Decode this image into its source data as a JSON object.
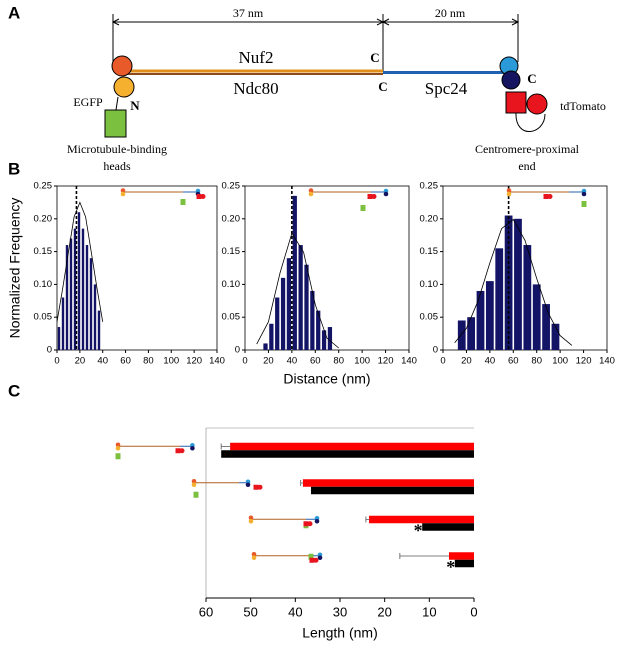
{
  "panel_labels": [
    "A",
    "B",
    "C"
  ],
  "diagram": {
    "dimensions": [
      "37 nm",
      "20 nm"
    ],
    "top_protein": "Nuf2",
    "bottom_protein": "Ndc80",
    "right_protein": "Spc24",
    "c_termini": [
      "C",
      "C",
      "C"
    ],
    "n_terminus": "N",
    "left_tag": "EGFP",
    "right_tag": "tdTomato",
    "left_caption": [
      "Microtubule-binding",
      "heads"
    ],
    "right_caption": [
      "Centromere-proximal",
      "end"
    ]
  },
  "chart_data": [
    {
      "type": "histogram",
      "ylabel": "Normalized Frequency",
      "bins": [
        0,
        3.5,
        7,
        10.5,
        14,
        17.5,
        21,
        24.5,
        28,
        31.5,
        35,
        38.5
      ],
      "values": [
        0.035,
        0.08,
        0.16,
        0.17,
        0.185,
        0.21,
        0.185,
        0.16,
        0.14,
        0.1,
        0.06
      ],
      "color": "#141466",
      "fit": {
        "x": [
          0,
          5,
          10,
          15,
          20,
          25,
          30,
          35,
          40
        ],
        "values": [
          0.043,
          0.094,
          0.149,
          0.203,
          0.225,
          0.203,
          0.149,
          0.094,
          0.043
        ]
      },
      "mean": 17,
      "xlim": [
        0,
        140
      ],
      "xticks": [
        0,
        20,
        40,
        60,
        80,
        100,
        120,
        140
      ],
      "ylim": [
        0,
        0.25
      ],
      "yticks": [
        0,
        0.05,
        {
          "value": 0.1,
          "label": "0.10"
        },
        0.15,
        {
          "value": 0.2,
          "label": "0.20"
        },
        0.25
      ]
    },
    {
      "type": "histogram",
      "xlabel": "Distance (nm)",
      "bins": [
        15,
        20,
        25,
        30,
        35,
        40,
        45,
        50,
        55,
        60,
        65,
        70,
        75
      ],
      "values": [
        0.01,
        0.04,
        0.08,
        0.11,
        0.14,
        0.235,
        0.16,
        0.13,
        0.09,
        0.06,
        0.03,
        0.035
      ],
      "color": "#141466",
      "fit": {
        "x": [
          10,
          20,
          30,
          40,
          50,
          60,
          70,
          80
        ],
        "values": [
          0.009,
          0.043,
          0.118,
          0.178,
          0.149,
          0.069,
          0.018,
          0.003
        ]
      },
      "mean": 40,
      "xlim": [
        0,
        140
      ],
      "xticks": [
        0,
        20,
        40,
        60,
        80,
        100,
        120,
        140
      ],
      "ylim": [
        0,
        0.25
      ],
      "yticks": [
        0,
        0.05,
        {
          "value": 0.1,
          "label": "0.10"
        },
        0.15,
        {
          "value": 0.2,
          "label": "0.20"
        },
        0.25
      ]
    },
    {
      "type": "histogram",
      "bins": [
        12,
        20,
        28,
        36,
        44,
        52,
        60,
        68,
        76,
        84,
        92,
        100
      ],
      "values": [
        0.045,
        0.05,
        0.09,
        0.105,
        0.155,
        0.205,
        0.2,
        0.16,
        0.1,
        0.07,
        0.04
      ],
      "color": "#141466",
      "fit": {
        "x": [
          10,
          20,
          30,
          40,
          50,
          60,
          70,
          80,
          90,
          100,
          110
        ],
        "values": [
          0.011,
          0.033,
          0.075,
          0.133,
          0.185,
          0.199,
          0.167,
          0.109,
          0.056,
          0.022,
          0.007
        ]
      },
      "mean": 56,
      "xlim": [
        0,
        140
      ],
      "xticks": [
        0,
        20,
        40,
        60,
        80,
        100,
        120,
        140
      ],
      "ylim": [
        0,
        0.25
      ],
      "yticks": [
        0,
        0.05,
        {
          "value": 0.1,
          "label": "0.10"
        },
        0.15,
        {
          "value": 0.2,
          "label": "0.20"
        },
        0.25
      ]
    },
    {
      "type": "hbar",
      "xlabel": "Length (nm)",
      "categories": [
        null,
        null,
        null,
        null
      ],
      "series": [
        {
          "color": "#ff0000",
          "values": [
            54.6,
            38.3,
            23.5,
            5.6
          ],
          "errors": [
            2,
            0.5,
            0.7,
            11
          ]
        },
        {
          "color": "#000000",
          "values": [
            56.6,
            36.5,
            11.6,
            4.3
          ]
        }
      ],
      "annotations": [
        {
          "text": "*",
          "category": 2
        },
        {
          "text": "*",
          "category": 3
        }
      ],
      "xlim": [
        60,
        0
      ],
      "xticks": [
        60,
        50,
        40,
        30,
        20,
        10,
        0
      ]
    }
  ]
}
